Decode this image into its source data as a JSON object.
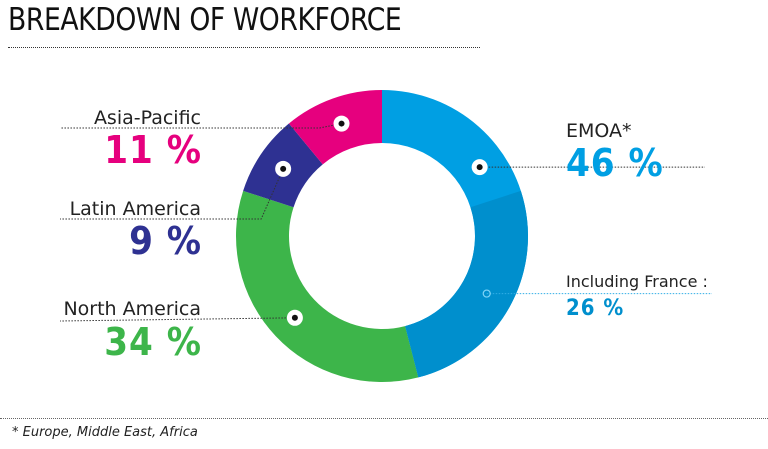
{
  "title": "BREAKDOWN OF WORKFORCE",
  "footnote": "* Europe, Middle East, Africa",
  "chart_data": {
    "type": "pie",
    "title": "BREAKDOWN OF WORKFORCE",
    "style": "donut",
    "slices": [
      {
        "label": "EMOA*",
        "value": 46,
        "display": "46 %",
        "color": "#009fe3"
      },
      {
        "label": "North America",
        "value": 34,
        "display": "34 %",
        "color": "#3db54a"
      },
      {
        "label": "Latin America",
        "value": 9,
        "display": "9 %",
        "color": "#2e3192"
      },
      {
        "label": "Asia-Pacific",
        "value": 11,
        "display": "11 %",
        "color": "#e6007e"
      }
    ],
    "sub_slice": {
      "label": "Including France :",
      "value": 26,
      "display": "26 %",
      "parent": "EMOA*",
      "color": "#008fcd"
    }
  }
}
